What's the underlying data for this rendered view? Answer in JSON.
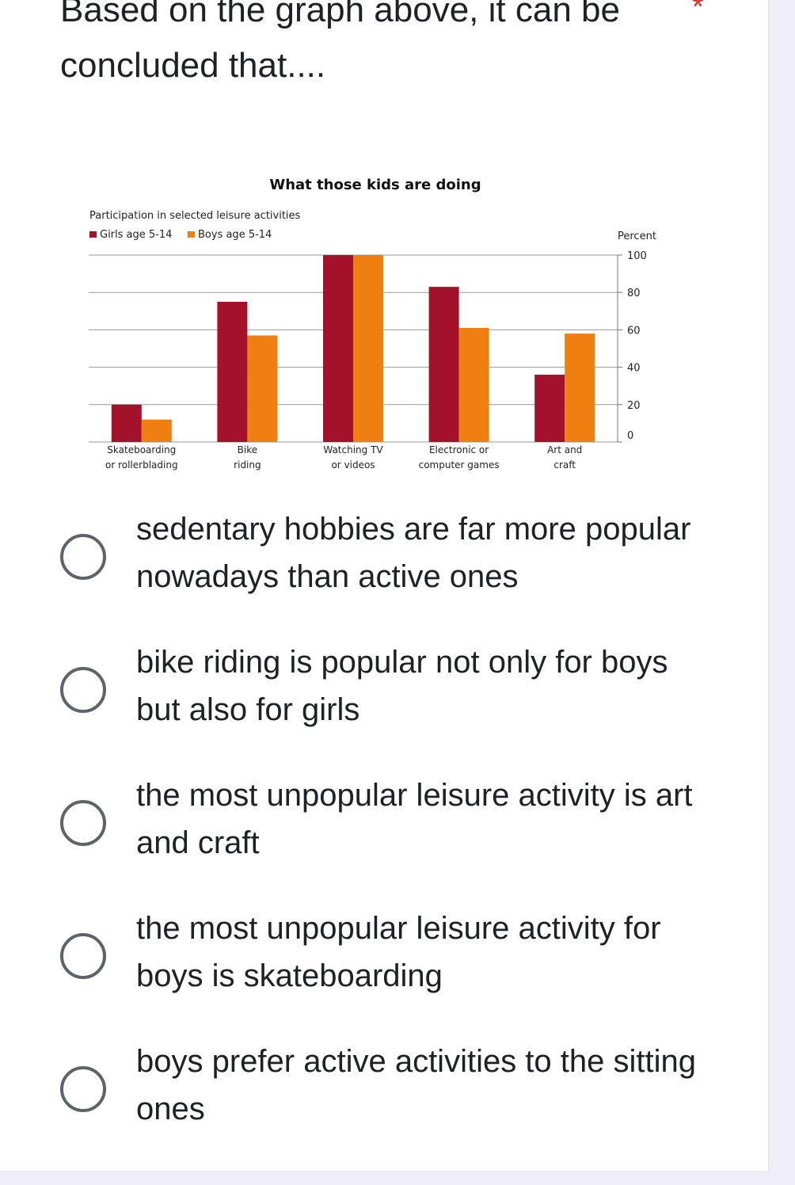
{
  "question": {
    "text": "Based on the graph above, it can be concluded that....",
    "required_mark": "*"
  },
  "chart_data": {
    "type": "bar",
    "title": "What those kids are doing",
    "subtitle": "Participation in selected leisure activities",
    "ylabel": "Percent",
    "ylim": [
      0,
      100
    ],
    "yticks": [
      0,
      20,
      40,
      60,
      80,
      100
    ],
    "grid": true,
    "legend_position": "top-left",
    "categories": [
      [
        "Skateboarding",
        "or rollerblading"
      ],
      [
        "Bike",
        "riding"
      ],
      [
        "Watching TV",
        "or videos"
      ],
      [
        "Electronic or",
        "computer games"
      ],
      [
        "Art and",
        "craft"
      ]
    ],
    "series": [
      {
        "name": "Girls age 5-14",
        "color": "#a3122a",
        "values": [
          20,
          75,
          100,
          83,
          36
        ]
      },
      {
        "name": "Boys age 5-14",
        "color": "#f07f12",
        "values": [
          12,
          57,
          100,
          61,
          58
        ]
      }
    ]
  },
  "options": [
    {
      "label": "sedentary hobbies are far more popular nowadays than active ones"
    },
    {
      "label": "bike riding is popular not only for boys but also for girls"
    },
    {
      "label": "the most unpopular leisure activity is art and craft"
    },
    {
      "label": "the most unpopular leisure activity for boys is skateboarding"
    },
    {
      "label": "boys prefer active activities to the sitting ones"
    }
  ],
  "colors": {
    "background": "#efedf6",
    "card": "#ffffff",
    "text": "#202124",
    "required": "#d93025",
    "radio_border": "#5f6368"
  }
}
